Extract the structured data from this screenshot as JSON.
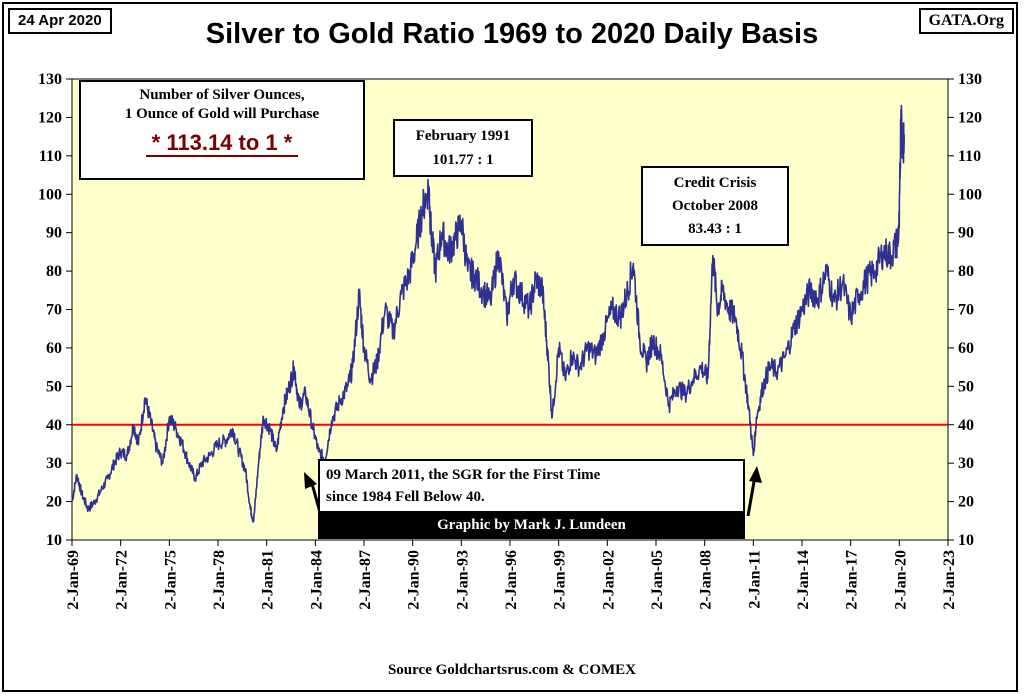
{
  "header": {
    "date": "24 Apr 2020",
    "site": "GATA.Org",
    "title": "Silver to Gold Ratio 1969 to 2020 Daily Basis"
  },
  "annotations": {
    "silver_box_line1": "Number of Silver Ounces,",
    "silver_box_line2": "1 Ounce of Gold will Purchase",
    "silver_box_ratio": "* 113.14 to 1 *",
    "feb_line1": "February 1991",
    "feb_line2": "101.77 : 1",
    "credit_line1": "Credit Crisis",
    "credit_line2": "October 2008",
    "credit_line3": "83.43 : 1",
    "march_line1": "09 March 2011, the SGR for the First Time",
    "march_line2": "since 1984 Fell Below 40.",
    "graphic_by": "Graphic by Mark J. Lundeen"
  },
  "footer": {
    "source": "Source Goldchartsrus.com & COMEX"
  },
  "colors": {
    "plot_bg": "#FFFFCC",
    "series": "#2E3192",
    "reference_line": "#FF0000",
    "ratio_text": "#7A0000"
  },
  "chart_data": {
    "type": "line",
    "ylim": [
      10,
      130
    ],
    "xlim": [
      1969.0,
      2023.0
    ],
    "yticks": [
      10,
      20,
      30,
      40,
      50,
      60,
      70,
      80,
      90,
      100,
      110,
      120,
      130
    ],
    "xtick_labels": [
      "2-Jan-69",
      "2-Jan-72",
      "2-Jan-75",
      "2-Jan-78",
      "2-Jan-81",
      "2-Jan-84",
      "2-Jan-87",
      "2-Jan-90",
      "2-Jan-93",
      "2-Jan-96",
      "2-Jan-99",
      "2-Jan-02",
      "2-Jan-05",
      "2-Jan-08",
      "2-Jan-11",
      "2-Jan-14",
      "2-Jan-17",
      "2-Jan-20",
      "2-Jan-23"
    ],
    "xtick_values": [
      1969,
      1972,
      1975,
      1978,
      1981,
      1984,
      1987,
      1990,
      1993,
      1996,
      1999,
      2002,
      2005,
      2008,
      2011,
      2014,
      2017,
      2020,
      2023
    ],
    "reference_line": 40,
    "grid": false,
    "series": [
      {
        "x": [
          1969.0,
          1969.3,
          1969.6,
          1970.0,
          1970.4,
          1970.8,
          1971.2,
          1971.6,
          1972.0,
          1972.4,
          1972.8,
          1973.1,
          1973.5,
          1973.9,
          1974.2,
          1974.6,
          1975.0,
          1975.4,
          1975.8,
          1976.2,
          1976.6,
          1977.0,
          1977.5,
          1978.0,
          1978.5,
          1978.9,
          1979.3,
          1979.7,
          1980.0,
          1980.2,
          1980.5,
          1980.8,
          1981.2,
          1981.6,
          1982.0,
          1982.4,
          1982.7,
          1983.0,
          1983.4,
          1983.8,
          1984.2,
          1984.6,
          1985.0,
          1985.5,
          1986.0,
          1986.3,
          1986.7,
          1987.0,
          1987.4,
          1987.8,
          1988.3,
          1988.8,
          1989.3,
          1989.8,
          1990.2,
          1990.6,
          1991.0,
          1991.1,
          1991.4,
          1991.8,
          1992.2,
          1992.6,
          1993.0,
          1993.4,
          1993.8,
          1994.3,
          1994.8,
          1995.3,
          1995.8,
          1996.2,
          1996.7,
          1997.2,
          1997.6,
          1998.0,
          1998.3,
          1998.6,
          1999.0,
          1999.4,
          1999.8,
          2000.3,
          2000.8,
          2001.3,
          2001.8,
          2002.3,
          2002.8,
          2003.2,
          2003.6,
          2004.0,
          2004.4,
          2004.8,
          2005.3,
          2005.8,
          2006.3,
          2006.8,
          2007.3,
          2007.8,
          2008.2,
          2008.5,
          2008.8,
          2009.1,
          2009.5,
          2009.9,
          2010.3,
          2010.7,
          2011.0,
          2011.2,
          2011.6,
          2012.0,
          2012.5,
          2013.0,
          2013.5,
          2014.0,
          2014.5,
          2015.0,
          2015.5,
          2016.0,
          2016.5,
          2017.0,
          2017.5,
          2018.0,
          2018.5,
          2019.0,
          2019.5,
          2019.9,
          2020.0,
          2020.1,
          2020.2,
          2020.3
        ],
        "values": [
          20,
          27,
          22,
          18,
          20,
          23,
          26,
          30,
          33,
          32,
          40,
          35,
          47,
          40,
          34,
          30,
          42,
          39,
          35,
          30,
          26,
          30,
          32,
          35,
          36,
          39,
          33,
          28,
          18,
          15,
          30,
          42,
          39,
          33,
          44,
          50,
          55,
          45,
          48,
          40,
          33,
          31,
          41,
          46,
          50,
          55,
          74,
          60,
          52,
          56,
          70,
          64,
          74,
          79,
          87,
          96,
          102,
          92,
          80,
          90,
          85,
          88,
          93,
          80,
          79,
          75,
          72,
          85,
          68,
          78,
          74,
          70,
          78,
          75,
          60,
          42,
          60,
          52,
          58,
          55,
          60,
          58,
          64,
          70,
          68,
          74,
          82,
          62,
          56,
          62,
          58,
          45,
          50,
          48,
          52,
          55,
          52,
          84,
          70,
          75,
          70,
          68,
          58,
          45,
          32,
          42,
          50,
          55,
          54,
          58,
          65,
          70,
          75,
          73,
          80,
          72,
          77,
          68,
          74,
          78,
          80,
          85,
          84,
          88,
          93,
          122,
          113,
          113
        ]
      }
    ]
  }
}
